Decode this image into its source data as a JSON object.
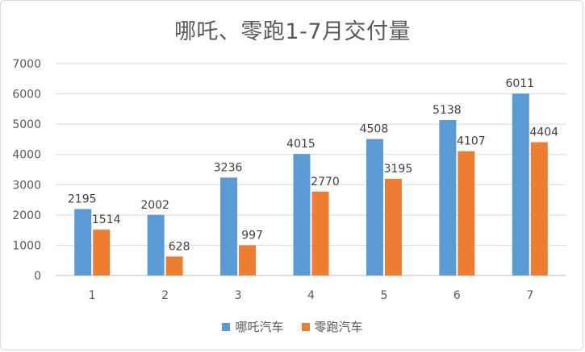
{
  "chart_data": {
    "type": "bar",
    "title": "哪吒、零跑1-7月交付量",
    "categories": [
      "1",
      "2",
      "3",
      "4",
      "5",
      "6",
      "7"
    ],
    "series": [
      {
        "name": "哪吒汽车",
        "color": "#5b9bd5",
        "values": [
          2195,
          2002,
          3236,
          4015,
          4508,
          5138,
          6011
        ]
      },
      {
        "name": "零跑汽车",
        "color": "#ed7d31",
        "values": [
          1514,
          628,
          997,
          2770,
          3195,
          4107,
          4404
        ]
      }
    ],
    "ylim": [
      0,
      7000
    ],
    "yticks": [
      "0",
      "1000",
      "2000",
      "3000",
      "4000",
      "5000",
      "6000",
      "7000"
    ],
    "grid": true,
    "legend_position": "bottom"
  }
}
